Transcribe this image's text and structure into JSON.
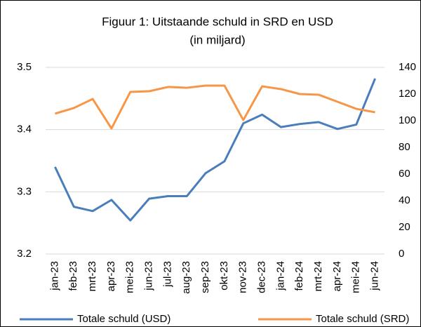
{
  "chart_data": {
    "type": "line",
    "title": "Figuur 1: Uitstaande schuld in SRD en USD",
    "subtitle": "(in miljard)",
    "categories": [
      "jan-23",
      "feb-23",
      "mrt-23",
      "apr-23",
      "mei-23",
      "jun-23",
      "jul-23",
      "aug-23",
      "sep-23",
      "okt-23",
      "nov-23",
      "dec-23",
      "jan-24",
      "feb-24",
      "mrt-24",
      "apr-24",
      "mei-24",
      "jun-24"
    ],
    "series": [
      {
        "name": "Totale schuld (USD)",
        "color": "#4a7ebb",
        "values": [
          3.34,
          3.276,
          3.269,
          3.287,
          3.254,
          3.289,
          3.293,
          3.293,
          3.33,
          3.349,
          3.41,
          3.424,
          3.404,
          3.409,
          3.412,
          3.401,
          3.408,
          3.482
        ]
      },
      {
        "name": "Totale schuld (SRD)",
        "color": "#f79646",
        "axis": "y2",
        "values": [
          105.3,
          109.5,
          116.3,
          94.2,
          121.6,
          122.1,
          125.3,
          124.7,
          126.3,
          126.3,
          100.5,
          125.8,
          123.7,
          120.0,
          119.5,
          114.2,
          108.9,
          106.3
        ]
      }
    ],
    "ylim": [
      3.2,
      3.5
    ],
    "yticks": [
      3.2,
      3.3,
      3.4,
      3.5
    ],
    "y2lim": [
      0,
      140
    ],
    "y2ticks": [
      0,
      20,
      40,
      60,
      80,
      100,
      120,
      140
    ],
    "grid": true,
    "legend": "bottom"
  }
}
